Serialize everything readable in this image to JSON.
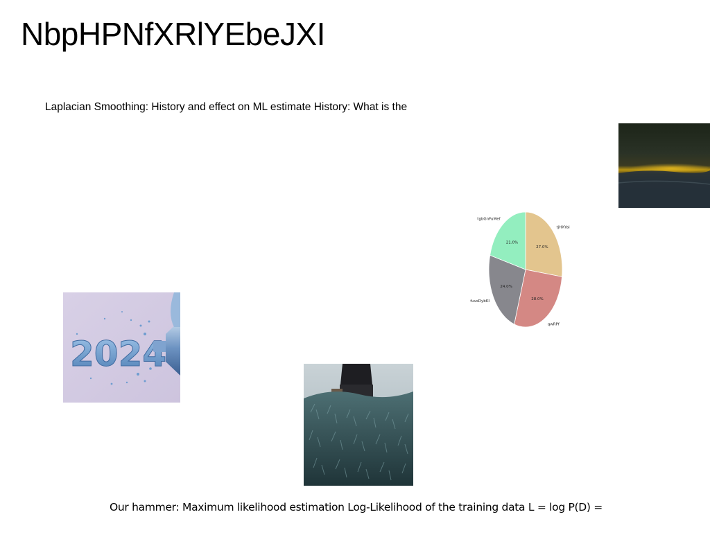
{
  "slide": {
    "title": "NbpHPNfXRlYEbeJXI",
    "body_text": "Laplacian Smoothing: History and effect on ML estimate History: What is the",
    "footer_text": "Our hammer: Maximum likelihood estimation Log-Likelihood of the training data L = log P(D) ="
  },
  "images": {
    "sky_photo": "sky-photo",
    "year_photo": "year-2024-photo",
    "year_photo_text": "2024",
    "grass_photo": "grass-house-photo"
  },
  "chart_data": {
    "type": "pie",
    "title": "",
    "series": [
      {
        "name": "tjHXYai",
        "value": 27.0,
        "label": "27.0%",
        "color": "#e3c58e"
      },
      {
        "name": "qwRPf",
        "value": 28.0,
        "label": "28.0%",
        "color": "#d48884"
      },
      {
        "name": "fuvsDybKI",
        "value": 24.0,
        "label": "24.0%",
        "color": "#87878d"
      },
      {
        "name": "tgbGnFuMef",
        "value": 21.0,
        "label": "21.0%",
        "color": "#93eebf"
      }
    ],
    "start": "top",
    "direction": "clockwise",
    "legend": "none"
  }
}
